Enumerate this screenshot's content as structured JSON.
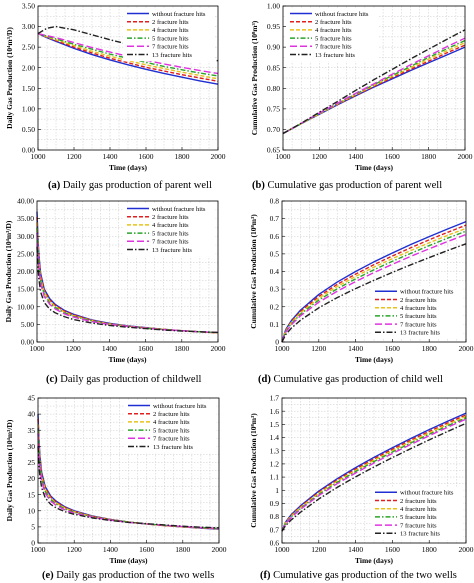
{
  "series_styles": [
    {
      "color": "#1f2fd1",
      "dash": ""
    },
    {
      "color": "#e01f1f",
      "dash": "4,2"
    },
    {
      "color": "#e8c21a",
      "dash": "4,2"
    },
    {
      "color": "#2aa52a",
      "dash": "5,2,1.5,2"
    },
    {
      "color": "#e033e0",
      "dash": "7,3"
    },
    {
      "color": "#222222",
      "dash": "6,2,1.5,2"
    }
  ],
  "chart_data": [
    {
      "type": "line",
      "caption_letter": "(a)",
      "caption_text": " Daily gas production of parent well",
      "xlabel": "Time (days)",
      "ylabel": "Daily Gas Production (10⁴m³/D)",
      "xlim": [
        1000,
        2000
      ],
      "ylim": [
        0,
        3.5
      ],
      "xticks": [
        "1000",
        "1200",
        "1400",
        "1600",
        "1800",
        "2000"
      ],
      "yticks": [
        "0.00",
        "0.50",
        "1.00",
        "1.50",
        "2.00",
        "2.50",
        "3.00",
        "3.50"
      ],
      "legend_position": "top-right",
      "x": [
        1000,
        1050,
        1100,
        1200,
        1300,
        1400,
        1500,
        1600,
        1700,
        1800,
        1900,
        2000
      ],
      "series": [
        {
          "name": "without fracture hits",
          "values": [
            2.83,
            2.73,
            2.64,
            2.47,
            2.32,
            2.19,
            2.07,
            1.96,
            1.86,
            1.77,
            1.68,
            1.6
          ]
        },
        {
          "name": "2 fracture hits",
          "values": [
            2.83,
            2.74,
            2.66,
            2.5,
            2.36,
            2.23,
            2.12,
            2.01,
            1.92,
            1.83,
            1.75,
            1.67
          ]
        },
        {
          "name": "4 fracture hits",
          "values": [
            2.83,
            2.75,
            2.68,
            2.54,
            2.4,
            2.28,
            2.17,
            2.07,
            1.98,
            1.89,
            1.81,
            1.73
          ]
        },
        {
          "name": "5 fracture hits",
          "values": [
            2.83,
            2.77,
            2.7,
            2.57,
            2.45,
            2.33,
            2.23,
            2.13,
            2.03,
            1.95,
            1.87,
            1.8
          ]
        },
        {
          "name": "7 fracture hits",
          "values": [
            2.83,
            2.78,
            2.73,
            2.61,
            2.49,
            2.38,
            2.28,
            2.18,
            2.09,
            2.01,
            1.93,
            1.86
          ]
        },
        {
          "name": "13 fracture hits",
          "values": [
            2.83,
            2.96,
            3.0,
            2.92,
            2.8,
            2.68,
            2.57,
            2.47,
            2.38,
            2.3,
            2.23,
            2.17
          ]
        }
      ]
    },
    {
      "type": "line",
      "caption_letter": "(b)",
      "caption_text": " Cumulative gas production of parent well",
      "xlabel": "Time (days)",
      "ylabel": "Cumulative Gas Production (10⁸m³)",
      "xlim": [
        1000,
        2000
      ],
      "ylim": [
        0.65,
        1.0
      ],
      "xticks": [
        "1000",
        "1200",
        "1400",
        "1600",
        "1800",
        "2000"
      ],
      "yticks": [
        "0.65",
        "0.70",
        "0.75",
        "0.80",
        "0.85",
        "0.90",
        "0.95",
        "1.00"
      ],
      "legend_position": "top-left",
      "x": [
        1000,
        1100,
        1200,
        1300,
        1400,
        1500,
        1600,
        1700,
        1800,
        1900,
        2000
      ],
      "series": [
        {
          "name": "without fracture hits",
          "values": [
            0.69,
            0.714,
            0.737,
            0.76,
            0.782,
            0.803,
            0.823,
            0.843,
            0.862,
            0.881,
            0.9
          ]
        },
        {
          "name": "2 fracture hits",
          "values": [
            0.69,
            0.714,
            0.738,
            0.761,
            0.783,
            0.805,
            0.826,
            0.846,
            0.866,
            0.886,
            0.905
          ]
        },
        {
          "name": "4 fracture hits",
          "values": [
            0.69,
            0.714,
            0.738,
            0.762,
            0.785,
            0.807,
            0.829,
            0.85,
            0.871,
            0.891,
            0.911
          ]
        },
        {
          "name": "5 fracture hits",
          "values": [
            0.69,
            0.714,
            0.739,
            0.763,
            0.786,
            0.809,
            0.831,
            0.853,
            0.875,
            0.896,
            0.916
          ]
        },
        {
          "name": "7 fracture hits",
          "values": [
            0.69,
            0.715,
            0.74,
            0.764,
            0.788,
            0.811,
            0.834,
            0.857,
            0.879,
            0.901,
            0.922
          ]
        },
        {
          "name": "13 fracture hits",
          "values": [
            0.69,
            0.715,
            0.742,
            0.768,
            0.795,
            0.821,
            0.846,
            0.871,
            0.895,
            0.919,
            0.942
          ]
        }
      ]
    },
    {
      "type": "line",
      "caption_letter": "(c)",
      "caption_text": " Daily gas production of childwell",
      "xlabel": "Time (days)",
      "ylabel": "Daily Gas Production (10⁴m³/D)",
      "xlim": [
        1000,
        2000
      ],
      "ylim": [
        0,
        40
      ],
      "xticks": [
        "1000",
        "1200",
        "1400",
        "1600",
        "1800",
        "2000"
      ],
      "yticks": [
        "0.00",
        "5.00",
        "10.00",
        "15.00",
        "20.00",
        "25.00",
        "30.00",
        "35.00",
        "40.00"
      ],
      "legend_position": "top-right",
      "x": [
        1000,
        1005,
        1010,
        1020,
        1040,
        1070,
        1100,
        1150,
        1200,
        1300,
        1400,
        1500,
        1600,
        1700,
        1800,
        1900,
        2000
      ],
      "series": [
        {
          "name": "without fracture hits",
          "values": [
            37.0,
            30.0,
            25.0,
            19.5,
            15.0,
            12.3,
            10.7,
            9.0,
            7.9,
            6.3,
            5.3,
            4.6,
            4.1,
            3.6,
            3.2,
            2.9,
            2.6
          ]
        },
        {
          "name": "2 fracture hits",
          "values": [
            35.5,
            28.8,
            24.0,
            18.8,
            14.5,
            11.9,
            10.4,
            8.8,
            7.7,
            6.2,
            5.2,
            4.5,
            4.0,
            3.6,
            3.2,
            2.9,
            2.6
          ]
        },
        {
          "name": "4 fracture hits",
          "values": [
            34.0,
            27.5,
            23.0,
            18.0,
            14.0,
            11.5,
            10.1,
            8.5,
            7.5,
            6.1,
            5.1,
            4.5,
            4.0,
            3.6,
            3.2,
            2.9,
            2.6
          ]
        },
        {
          "name": "5 fracture hits",
          "values": [
            32.5,
            26.5,
            22.0,
            17.3,
            13.5,
            11.1,
            9.8,
            8.3,
            7.3,
            6.0,
            5.1,
            4.4,
            3.9,
            3.5,
            3.2,
            2.9,
            2.7
          ]
        },
        {
          "name": "7 fracture hits",
          "values": [
            31.0,
            25.0,
            21.0,
            16.5,
            12.9,
            10.7,
            9.4,
            8.0,
            7.1,
            5.8,
            5.0,
            4.4,
            3.9,
            3.5,
            3.2,
            2.9,
            2.7
          ]
        },
        {
          "name": "13 fracture hits",
          "values": [
            27.0,
            21.5,
            18.0,
            14.2,
            11.2,
            9.3,
            8.3,
            7.2,
            6.4,
            5.4,
            4.7,
            4.2,
            3.8,
            3.4,
            3.1,
            2.9,
            2.7
          ]
        }
      ]
    },
    {
      "type": "line",
      "caption_letter": "(d)",
      "caption_text": " Cumulative gas production of child well",
      "xlabel": "Time (days)",
      "ylabel": "Cumulative Gas Production (10⁸m³)",
      "xlim": [
        1000,
        2000
      ],
      "ylim": [
        0,
        0.8
      ],
      "xticks": [
        "1000",
        "1200",
        "1400",
        "1600",
        "1800",
        "2000"
      ],
      "yticks": [
        "0",
        "0.1",
        "0.2",
        "0.3",
        "0.4",
        "0.5",
        "0.6",
        "0.7",
        "0.8"
      ],
      "legend_position": "bottom-right",
      "x": [
        1000,
        1020,
        1050,
        1100,
        1200,
        1300,
        1400,
        1500,
        1600,
        1700,
        1800,
        1900,
        2000
      ],
      "series": [
        {
          "name": "without fracture hits",
          "values": [
            0.0,
            0.07,
            0.12,
            0.18,
            0.27,
            0.34,
            0.4,
            0.455,
            0.505,
            0.553,
            0.598,
            0.641,
            0.683
          ]
        },
        {
          "name": "2 fracture hits",
          "values": [
            0.0,
            0.066,
            0.114,
            0.172,
            0.259,
            0.327,
            0.385,
            0.439,
            0.488,
            0.535,
            0.58,
            0.622,
            0.663
          ]
        },
        {
          "name": "4 fracture hits",
          "values": [
            0.0,
            0.063,
            0.109,
            0.165,
            0.249,
            0.315,
            0.372,
            0.425,
            0.473,
            0.519,
            0.563,
            0.605,
            0.645
          ]
        },
        {
          "name": "5 fracture hits",
          "values": [
            0.0,
            0.059,
            0.103,
            0.157,
            0.238,
            0.302,
            0.358,
            0.41,
            0.458,
            0.503,
            0.547,
            0.589,
            0.629
          ]
        },
        {
          "name": "7 fracture hits",
          "values": [
            0.0,
            0.055,
            0.097,
            0.148,
            0.226,
            0.288,
            0.343,
            0.394,
            0.441,
            0.486,
            0.529,
            0.57,
            0.61
          ]
        },
        {
          "name": "13 fracture hits",
          "values": [
            0.0,
            0.042,
            0.078,
            0.123,
            0.194,
            0.252,
            0.303,
            0.35,
            0.395,
            0.438,
            0.479,
            0.519,
            0.557
          ]
        }
      ]
    },
    {
      "type": "line",
      "caption_letter": "(e)",
      "caption_text": " Daily gas production of the two wells",
      "xlabel": "Time (days)",
      "ylabel": "Daily Gas Production (10⁴m³/D)",
      "xlim": [
        1000,
        2000
      ],
      "ylim": [
        0,
        45
      ],
      "xticks": [
        "1000",
        "1200",
        "1400",
        "1600",
        "1800",
        "2000"
      ],
      "yticks": [
        "0",
        "5",
        "10",
        "15",
        "20",
        "25",
        "30",
        "35",
        "40",
        "45"
      ],
      "legend_position": "top-right",
      "x": [
        1000,
        1005,
        1010,
        1020,
        1040,
        1070,
        1100,
        1150,
        1200,
        1300,
        1400,
        1500,
        1600,
        1700,
        1800,
        1900,
        2000
      ],
      "series": [
        {
          "name": "without fracture hits",
          "values": [
            40.0,
            32.5,
            27.5,
            22.0,
            17.5,
            14.6,
            13.0,
            11.2,
            10.0,
            8.4,
            7.3,
            6.5,
            5.9,
            5.4,
            5.0,
            4.6,
            4.3
          ]
        },
        {
          "name": "2 fracture hits",
          "values": [
            38.5,
            31.4,
            26.6,
            21.3,
            17.0,
            14.2,
            12.7,
            11.0,
            9.8,
            8.3,
            7.3,
            6.5,
            5.9,
            5.4,
            5.0,
            4.7,
            4.4
          ]
        },
        {
          "name": "4 fracture hits",
          "values": [
            37.0,
            30.2,
            25.6,
            20.6,
            16.5,
            13.8,
            12.4,
            10.8,
            9.7,
            8.2,
            7.2,
            6.5,
            5.9,
            5.4,
            5.0,
            4.7,
            4.4
          ]
        },
        {
          "name": "5 fracture hits",
          "values": [
            35.5,
            29.0,
            24.7,
            19.9,
            16.0,
            13.5,
            12.1,
            10.5,
            9.5,
            8.1,
            7.2,
            6.5,
            5.9,
            5.5,
            5.1,
            4.8,
            4.5
          ]
        },
        {
          "name": "7 fracture hits",
          "values": [
            34.0,
            27.8,
            23.7,
            19.2,
            15.4,
            13.0,
            11.7,
            10.2,
            9.3,
            8.0,
            7.1,
            6.4,
            5.9,
            5.5,
            5.1,
            4.8,
            4.5
          ]
        },
        {
          "name": "13 fracture hits",
          "values": [
            30.0,
            24.5,
            21.0,
            17.2,
            14.0,
            12.0,
            10.9,
            9.7,
            8.9,
            7.8,
            7.0,
            6.4,
            6.0,
            5.6,
            5.2,
            4.9,
            4.7
          ]
        }
      ]
    },
    {
      "type": "line",
      "caption_letter": "(f)",
      "caption_text": " Cumulative gas production of the two wells",
      "xlabel": "Time (days)",
      "ylabel": "Cumulative Gas Production (10⁸m³)",
      "xlim": [
        1000,
        2000
      ],
      "ylim": [
        0.6,
        1.7
      ],
      "xticks": [
        "1000",
        "1200",
        "1400",
        "1600",
        "1800",
        "2000"
      ],
      "yticks": [
        "0.6",
        "0.7",
        "0.8",
        "0.9",
        "1",
        "1.1",
        "1.2",
        "1.3",
        "1.4",
        "1.5",
        "1.6",
        "1.7"
      ],
      "legend_position": "bottom-right",
      "x": [
        1000,
        1020,
        1050,
        1100,
        1200,
        1300,
        1400,
        1500,
        1600,
        1700,
        1800,
        1900,
        2000
      ],
      "series": [
        {
          "name": "without fracture hits",
          "values": [
            0.69,
            0.76,
            0.815,
            0.882,
            0.994,
            1.088,
            1.172,
            1.25,
            1.323,
            1.393,
            1.46,
            1.524,
            1.585
          ]
        },
        {
          "name": "2 fracture hits",
          "values": [
            0.69,
            0.756,
            0.809,
            0.875,
            0.985,
            1.078,
            1.161,
            1.238,
            1.311,
            1.381,
            1.447,
            1.511,
            1.572
          ]
        },
        {
          "name": "4 fracture hits",
          "values": [
            0.69,
            0.752,
            0.804,
            0.868,
            0.977,
            1.069,
            1.151,
            1.228,
            1.3,
            1.369,
            1.435,
            1.499,
            1.56
          ]
        },
        {
          "name": "5 fracture hits",
          "values": [
            0.69,
            0.749,
            0.799,
            0.862,
            0.969,
            1.06,
            1.142,
            1.218,
            1.29,
            1.359,
            1.425,
            1.489,
            1.55
          ]
        },
        {
          "name": "7 fracture hits",
          "values": [
            0.69,
            0.745,
            0.793,
            0.855,
            0.96,
            1.05,
            1.131,
            1.207,
            1.279,
            1.348,
            1.414,
            1.478,
            1.54
          ]
        },
        {
          "name": "13 fracture hits",
          "values": [
            0.69,
            0.733,
            0.775,
            0.833,
            0.934,
            1.022,
            1.102,
            1.177,
            1.248,
            1.316,
            1.382,
            1.446,
            1.508
          ]
        }
      ]
    }
  ]
}
